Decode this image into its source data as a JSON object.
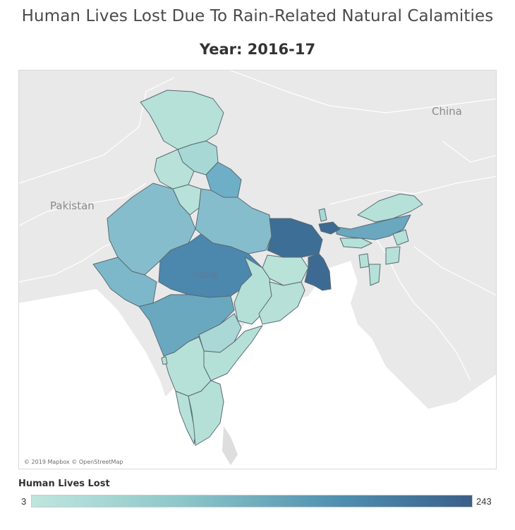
{
  "title": "Human Lives Lost Due To Rain-Related Natural Calamities",
  "subtitle": "Year: 2016-17",
  "map": {
    "country_labels": {
      "pakistan": "Pakistan",
      "china": "China",
      "india": "India"
    },
    "attribution": "© 2019 Mapbox © OpenStreetMap",
    "colors": {
      "land": "#e9e9e9",
      "water": "#ffffff",
      "border": "#ffffff",
      "low": "#b3e0d9",
      "mid": "#6aa7bf",
      "high": "#3c6289"
    }
  },
  "legend": {
    "title": "Human Lives Lost",
    "min": "3",
    "max": "243",
    "gradient_start": "#bfe6de",
    "gradient_end": "#3b5f88"
  }
}
